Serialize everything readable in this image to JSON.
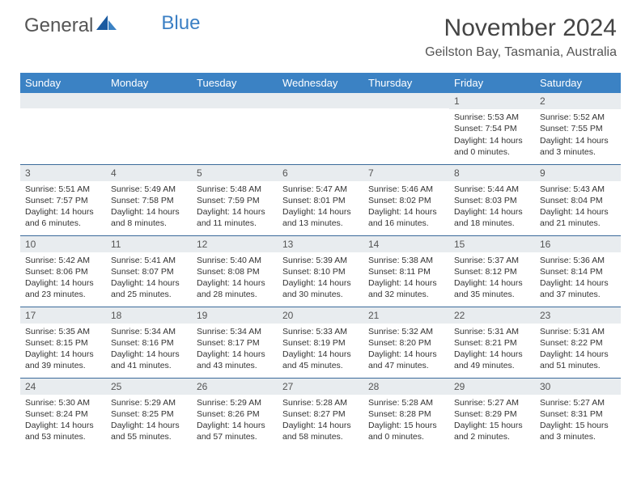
{
  "logo": {
    "text1": "General",
    "text2": "Blue"
  },
  "title": "November 2024",
  "location": "Geilston Bay, Tasmania, Australia",
  "colors": {
    "header_bg": "#3b82c4",
    "header_text": "#ffffff",
    "daynum_bg": "#e8ecef",
    "border": "#3b6a9a",
    "logo_blue": "#3b7fc4"
  },
  "weekdays": [
    "Sunday",
    "Monday",
    "Tuesday",
    "Wednesday",
    "Thursday",
    "Friday",
    "Saturday"
  ],
  "weeks": [
    [
      {
        "num": "",
        "sunrise": "",
        "sunset": "",
        "daylight": ""
      },
      {
        "num": "",
        "sunrise": "",
        "sunset": "",
        "daylight": ""
      },
      {
        "num": "",
        "sunrise": "",
        "sunset": "",
        "daylight": ""
      },
      {
        "num": "",
        "sunrise": "",
        "sunset": "",
        "daylight": ""
      },
      {
        "num": "",
        "sunrise": "",
        "sunset": "",
        "daylight": ""
      },
      {
        "num": "1",
        "sunrise": "Sunrise: 5:53 AM",
        "sunset": "Sunset: 7:54 PM",
        "daylight": "Daylight: 14 hours and 0 minutes."
      },
      {
        "num": "2",
        "sunrise": "Sunrise: 5:52 AM",
        "sunset": "Sunset: 7:55 PM",
        "daylight": "Daylight: 14 hours and 3 minutes."
      }
    ],
    [
      {
        "num": "3",
        "sunrise": "Sunrise: 5:51 AM",
        "sunset": "Sunset: 7:57 PM",
        "daylight": "Daylight: 14 hours and 6 minutes."
      },
      {
        "num": "4",
        "sunrise": "Sunrise: 5:49 AM",
        "sunset": "Sunset: 7:58 PM",
        "daylight": "Daylight: 14 hours and 8 minutes."
      },
      {
        "num": "5",
        "sunrise": "Sunrise: 5:48 AM",
        "sunset": "Sunset: 7:59 PM",
        "daylight": "Daylight: 14 hours and 11 minutes."
      },
      {
        "num": "6",
        "sunrise": "Sunrise: 5:47 AM",
        "sunset": "Sunset: 8:01 PM",
        "daylight": "Daylight: 14 hours and 13 minutes."
      },
      {
        "num": "7",
        "sunrise": "Sunrise: 5:46 AM",
        "sunset": "Sunset: 8:02 PM",
        "daylight": "Daylight: 14 hours and 16 minutes."
      },
      {
        "num": "8",
        "sunrise": "Sunrise: 5:44 AM",
        "sunset": "Sunset: 8:03 PM",
        "daylight": "Daylight: 14 hours and 18 minutes."
      },
      {
        "num": "9",
        "sunrise": "Sunrise: 5:43 AM",
        "sunset": "Sunset: 8:04 PM",
        "daylight": "Daylight: 14 hours and 21 minutes."
      }
    ],
    [
      {
        "num": "10",
        "sunrise": "Sunrise: 5:42 AM",
        "sunset": "Sunset: 8:06 PM",
        "daylight": "Daylight: 14 hours and 23 minutes."
      },
      {
        "num": "11",
        "sunrise": "Sunrise: 5:41 AM",
        "sunset": "Sunset: 8:07 PM",
        "daylight": "Daylight: 14 hours and 25 minutes."
      },
      {
        "num": "12",
        "sunrise": "Sunrise: 5:40 AM",
        "sunset": "Sunset: 8:08 PM",
        "daylight": "Daylight: 14 hours and 28 minutes."
      },
      {
        "num": "13",
        "sunrise": "Sunrise: 5:39 AM",
        "sunset": "Sunset: 8:10 PM",
        "daylight": "Daylight: 14 hours and 30 minutes."
      },
      {
        "num": "14",
        "sunrise": "Sunrise: 5:38 AM",
        "sunset": "Sunset: 8:11 PM",
        "daylight": "Daylight: 14 hours and 32 minutes."
      },
      {
        "num": "15",
        "sunrise": "Sunrise: 5:37 AM",
        "sunset": "Sunset: 8:12 PM",
        "daylight": "Daylight: 14 hours and 35 minutes."
      },
      {
        "num": "16",
        "sunrise": "Sunrise: 5:36 AM",
        "sunset": "Sunset: 8:14 PM",
        "daylight": "Daylight: 14 hours and 37 minutes."
      }
    ],
    [
      {
        "num": "17",
        "sunrise": "Sunrise: 5:35 AM",
        "sunset": "Sunset: 8:15 PM",
        "daylight": "Daylight: 14 hours and 39 minutes."
      },
      {
        "num": "18",
        "sunrise": "Sunrise: 5:34 AM",
        "sunset": "Sunset: 8:16 PM",
        "daylight": "Daylight: 14 hours and 41 minutes."
      },
      {
        "num": "19",
        "sunrise": "Sunrise: 5:34 AM",
        "sunset": "Sunset: 8:17 PM",
        "daylight": "Daylight: 14 hours and 43 minutes."
      },
      {
        "num": "20",
        "sunrise": "Sunrise: 5:33 AM",
        "sunset": "Sunset: 8:19 PM",
        "daylight": "Daylight: 14 hours and 45 minutes."
      },
      {
        "num": "21",
        "sunrise": "Sunrise: 5:32 AM",
        "sunset": "Sunset: 8:20 PM",
        "daylight": "Daylight: 14 hours and 47 minutes."
      },
      {
        "num": "22",
        "sunrise": "Sunrise: 5:31 AM",
        "sunset": "Sunset: 8:21 PM",
        "daylight": "Daylight: 14 hours and 49 minutes."
      },
      {
        "num": "23",
        "sunrise": "Sunrise: 5:31 AM",
        "sunset": "Sunset: 8:22 PM",
        "daylight": "Daylight: 14 hours and 51 minutes."
      }
    ],
    [
      {
        "num": "24",
        "sunrise": "Sunrise: 5:30 AM",
        "sunset": "Sunset: 8:24 PM",
        "daylight": "Daylight: 14 hours and 53 minutes."
      },
      {
        "num": "25",
        "sunrise": "Sunrise: 5:29 AM",
        "sunset": "Sunset: 8:25 PM",
        "daylight": "Daylight: 14 hours and 55 minutes."
      },
      {
        "num": "26",
        "sunrise": "Sunrise: 5:29 AM",
        "sunset": "Sunset: 8:26 PM",
        "daylight": "Daylight: 14 hours and 57 minutes."
      },
      {
        "num": "27",
        "sunrise": "Sunrise: 5:28 AM",
        "sunset": "Sunset: 8:27 PM",
        "daylight": "Daylight: 14 hours and 58 minutes."
      },
      {
        "num": "28",
        "sunrise": "Sunrise: 5:28 AM",
        "sunset": "Sunset: 8:28 PM",
        "daylight": "Daylight: 15 hours and 0 minutes."
      },
      {
        "num": "29",
        "sunrise": "Sunrise: 5:27 AM",
        "sunset": "Sunset: 8:29 PM",
        "daylight": "Daylight: 15 hours and 2 minutes."
      },
      {
        "num": "30",
        "sunrise": "Sunrise: 5:27 AM",
        "sunset": "Sunset: 8:31 PM",
        "daylight": "Daylight: 15 hours and 3 minutes."
      }
    ]
  ]
}
